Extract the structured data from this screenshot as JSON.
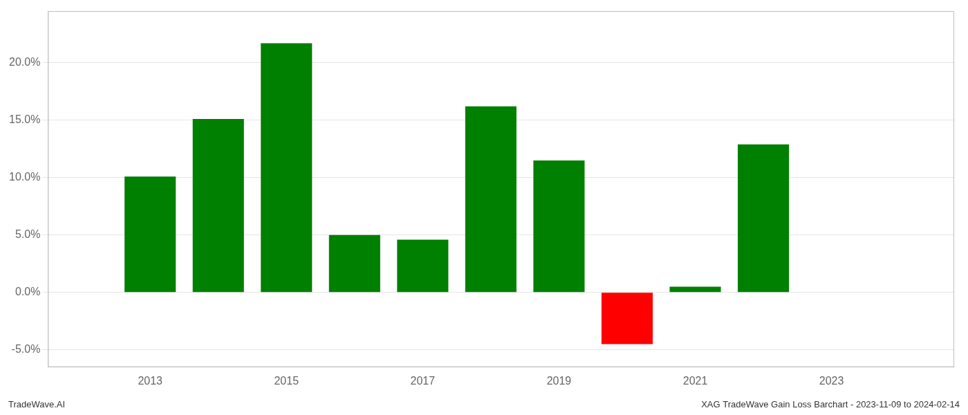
{
  "chart_data": {
    "type": "bar",
    "x": [
      2013,
      2014,
      2015,
      2016,
      2017,
      2018,
      2019,
      2020,
      2021,
      2022
    ],
    "values": [
      0.101,
      0.151,
      0.217,
      0.05,
      0.046,
      0.162,
      0.115,
      -0.045,
      0.005,
      0.129
    ],
    "colors": [
      "#008000",
      "#008000",
      "#008000",
      "#008000",
      "#008000",
      "#008000",
      "#008000",
      "#ff0000",
      "#008000",
      "#008000"
    ],
    "xlim": [
      2011.5,
      2024.8
    ],
    "xticks": [
      2013,
      2015,
      2017,
      2019,
      2021,
      2023
    ],
    "ylim": [
      -0.065,
      0.245
    ],
    "yticks": [
      {
        "value": -0.05,
        "label": "-5.0%"
      },
      {
        "value": 0.0,
        "label": "0.0%"
      },
      {
        "value": 0.05,
        "label": "5.0%"
      },
      {
        "value": 0.1,
        "label": "10.0%"
      },
      {
        "value": 0.15,
        "label": "15.0%"
      },
      {
        "value": 0.2,
        "label": "20.0%"
      }
    ],
    "grid": "y",
    "annotations": [
      "TradeWave.AI",
      "XAG TradeWave Gain Loss Barchart - 2023-11-09 to 2024-02-14"
    ]
  }
}
